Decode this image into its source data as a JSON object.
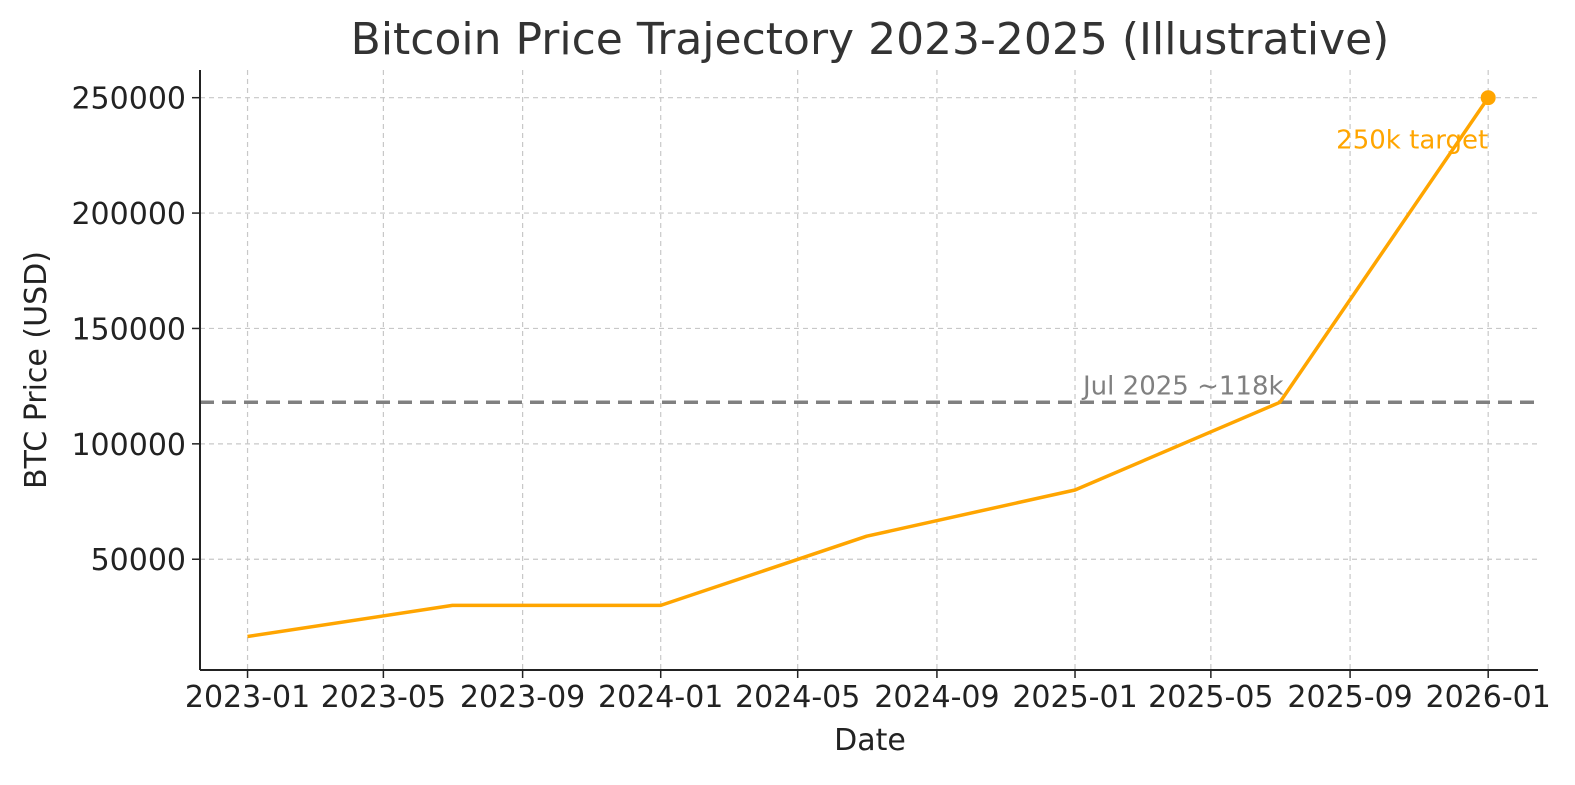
{
  "chart_data": {
    "type": "line",
    "title": "Bitcoin Price Trajectory 2023-2025 (Illustrative)",
    "xlabel": "Date",
    "ylabel": "BTC Price (USD)",
    "x_type": "date",
    "xlim": [
      "2022-11-20",
      "2026-02-14"
    ],
    "ylim": [
      2000,
      262000
    ],
    "x_ticks": [
      "2023-01-01",
      "2023-05-01",
      "2023-09-01",
      "2024-01-01",
      "2024-05-01",
      "2024-09-01",
      "2025-01-01",
      "2025-05-01",
      "2025-09-01",
      "2026-01-01"
    ],
    "x_tick_labels": [
      "2023-01",
      "2023-05",
      "2023-09",
      "2024-01",
      "2024-05",
      "2024-09",
      "2025-01",
      "2025-05",
      "2025-09",
      "2026-01"
    ],
    "y_ticks": [
      50000,
      100000,
      150000,
      200000,
      250000
    ],
    "y_tick_labels": [
      "50000",
      "100000",
      "150000",
      "200000",
      "250000"
    ],
    "grid": true,
    "series": [
      {
        "color": "#FFA500",
        "x": [
          "2023-01-01",
          "2023-07-01",
          "2024-01-01",
          "2024-07-01",
          "2025-01-01",
          "2025-07-01",
          "2026-01-01"
        ],
        "y": [
          16500,
          30000,
          30000,
          60000,
          80000,
          118000,
          250000
        ]
      }
    ],
    "reference_lines": [
      {
        "type": "horizontal",
        "y": 118000,
        "label": "Jul 2025 ~118k",
        "color": "#808080",
        "style": "dashed"
      }
    ],
    "annotations": [
      {
        "text": "250k target",
        "x": "2026-01-01",
        "y": 250000,
        "color": "#FFA500",
        "marker": true
      }
    ]
  }
}
